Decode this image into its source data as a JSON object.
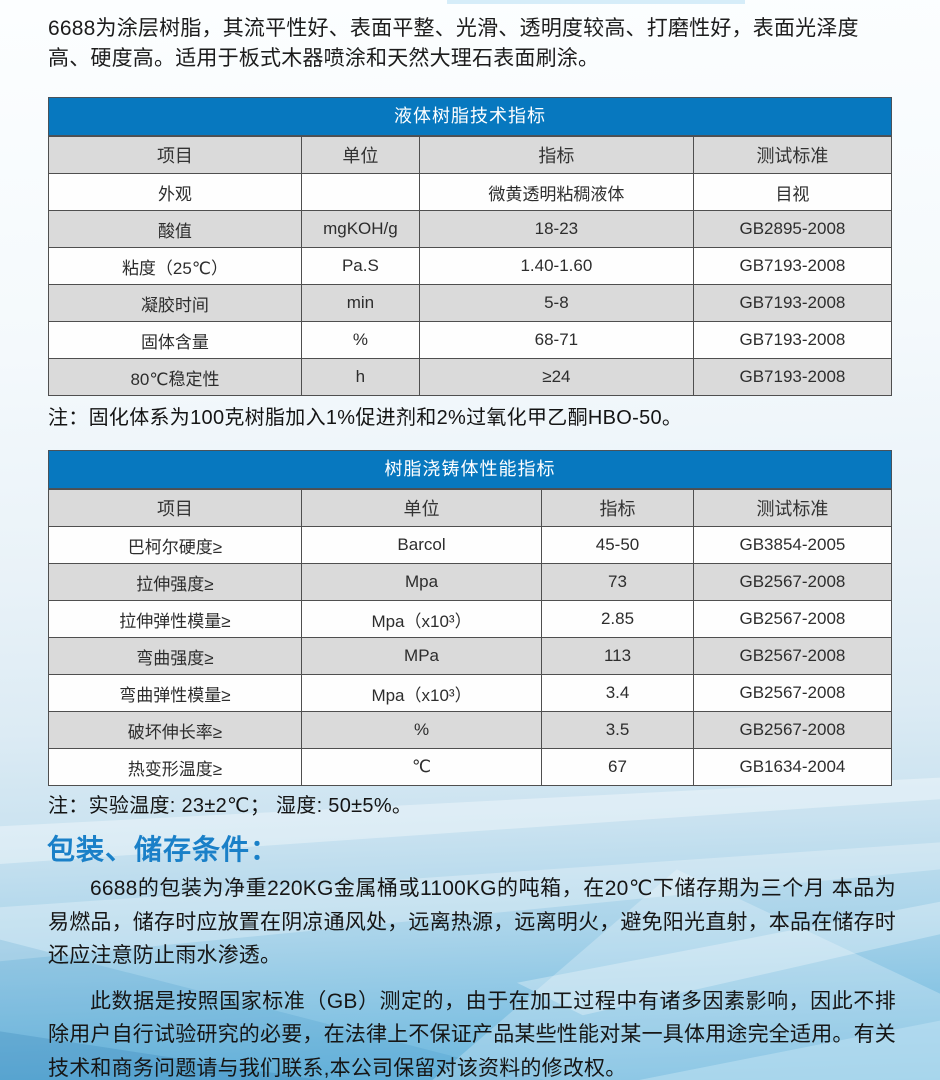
{
  "intro": "6688为涂层树脂，其流平性好、表面平整、光滑、透明度较高、打磨性好，表面光泽度高、硬度高。适用于板式木器喷涂和天然大理石表面刷涂。",
  "colors": {
    "table_header_blue": "#0778bf",
    "section_heading_blue": "#1a80c8",
    "row_stripe_gray": "#dadada"
  },
  "liquid_table": {
    "title": "液体树脂技术指标",
    "headers": [
      "项目",
      "单位",
      "指标",
      "测试标准"
    ],
    "rows": [
      [
        "外观",
        "",
        "微黄透明粘稠液体",
        "目视"
      ],
      [
        "酸值",
        "mgKOH/g",
        "18-23",
        "GB2895-2008"
      ],
      [
        "粘度（25℃）",
        "Pa.S",
        "1.40-1.60",
        "GB7193-2008"
      ],
      [
        "凝胶时间",
        "min",
        "5-8",
        "GB7193-2008"
      ],
      [
        "固体含量",
        "%",
        "68-71",
        "GB7193-2008"
      ],
      [
        "80℃稳定性",
        "h",
        "≥24",
        "GB7193-2008"
      ]
    ],
    "note": "注：固化体系为100克树脂加入1%促进剂和2%过氧化甲乙酮HBO-50。"
  },
  "casting_table": {
    "title": "树脂浇铸体性能指标",
    "headers": [
      "项目",
      "单位",
      "指标",
      "测试标准"
    ],
    "rows": [
      [
        "巴柯尔硬度≥",
        "Barcol",
        "45-50",
        "GB3854-2005"
      ],
      [
        "拉伸强度≥",
        "Mpa",
        "73",
        "GB2567-2008"
      ],
      [
        "拉伸弹性模量≥",
        "Mpa（x10³）",
        "2.85",
        "GB2567-2008"
      ],
      [
        "弯曲强度≥",
        "MPa",
        "113",
        "GB2567-2008"
      ],
      [
        "弯曲弹性模量≥",
        "Mpa（x10³）",
        "3.4",
        "GB2567-2008"
      ],
      [
        "破坏伸长率≥",
        "%",
        "3.5",
        "GB2567-2008"
      ],
      [
        "热变形温度≥",
        "℃",
        "67",
        "GB1634-2004"
      ]
    ],
    "note": "注：实验温度: 23±2℃； 湿度: 50±5%。"
  },
  "storage": {
    "heading": "包装、储存条件：",
    "para1": "6688的包装为净重220KG金属桶或1100KG的吨箱，在20℃下储存期为三个月 本品为易燃品，储存时应放置在阴凉通风处，远离热源，远离明火，避免阳光直射，本品在储存时还应注意防止雨水渗透。",
    "para2": "此数据是按照国家标准（GB）测定的，由于在加工过程中有诸多因素影响，因此不排除用户自行试验研究的必要，在法律上不保证产品某些性能对某一具体用途完全适用。有关技术和商务问题请与我们联系,本公司保留对该资料的修改权。"
  }
}
